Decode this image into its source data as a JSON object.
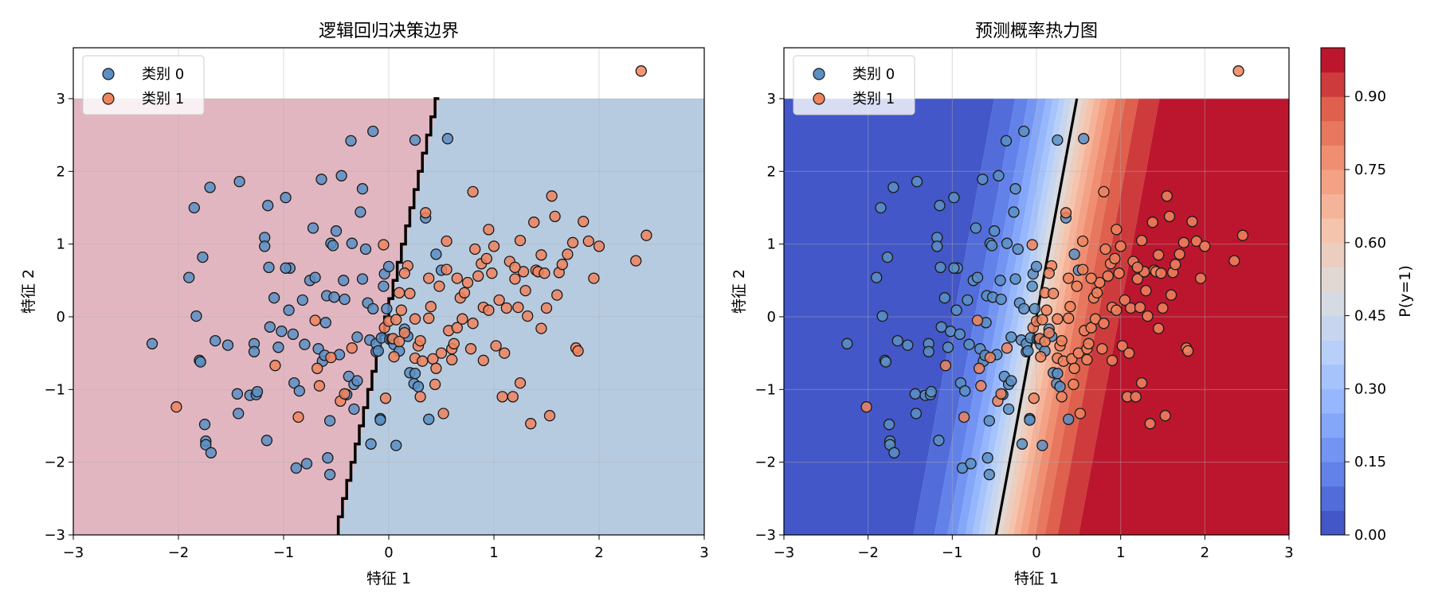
{
  "chart_data": [
    {
      "type": "scatter",
      "title": "逻辑回归决策边界",
      "xlabel": "特征 1",
      "ylabel": "特征 2",
      "xlim": [
        -3,
        3
      ],
      "ylim": [
        -3,
        3.7
      ],
      "xticks": [
        -3,
        -2,
        -1,
        0,
        1,
        2,
        3
      ],
      "yticks": [
        -3,
        -2,
        -1,
        0,
        1,
        2,
        3
      ],
      "tick_labels_x": [
        "−3",
        "−2",
        "−1",
        "0",
        "1",
        "2",
        "3"
      ],
      "tick_labels_y": [
        "−3",
        "−2",
        "−1",
        "0",
        "1",
        "2",
        "3"
      ],
      "grid": true,
      "legend_position": "top-left",
      "background": "predicted class regions (class 0 red, class 1 blue) with stepped black decision boundary",
      "boundary": {
        "x_at_y_min": -0.48,
        "x_at_y_max": 0.48
      },
      "region_colors": {
        "class0": "#e2b6c0",
        "class1": "#b7cbe0"
      },
      "series": [
        {
          "name": "类别 0",
          "color": "#5b8fc4",
          "points": [
            [
              -2.25,
              -0.37
            ],
            [
              -1.9,
              0.54
            ],
            [
              -1.85,
              1.5
            ],
            [
              -1.83,
              0.01
            ],
            [
              -1.8,
              -0.6
            ],
            [
              -1.79,
              -0.62
            ],
            [
              -1.77,
              0.82
            ],
            [
              -1.75,
              -1.48
            ],
            [
              -1.74,
              -1.71
            ],
            [
              -1.74,
              -1.76
            ],
            [
              -1.7,
              1.78
            ],
            [
              -1.69,
              -1.87
            ],
            [
              -1.65,
              -0.33
            ],
            [
              -1.53,
              -0.39
            ],
            [
              -1.44,
              -1.06
            ],
            [
              -1.43,
              -1.33
            ],
            [
              -1.42,
              1.86
            ],
            [
              -1.32,
              -1.08
            ],
            [
              -1.28,
              -0.37
            ],
            [
              -1.28,
              -0.48
            ],
            [
              -1.26,
              -1.07
            ],
            [
              -1.25,
              -1.03
            ],
            [
              -1.18,
              1.09
            ],
            [
              -1.18,
              0.97
            ],
            [
              -1.16,
              -1.7
            ],
            [
              -1.15,
              1.53
            ],
            [
              -1.14,
              0.68
            ],
            [
              -1.13,
              -0.14
            ],
            [
              -1.09,
              0.26
            ],
            [
              -1.05,
              -0.42
            ],
            [
              -1.02,
              -0.2
            ],
            [
              -0.98,
              1.64
            ],
            [
              -0.95,
              0.09
            ],
            [
              -0.94,
              0.67
            ],
            [
              -0.91,
              -0.24
            ],
            [
              -0.9,
              -0.91
            ],
            [
              -0.88,
              -2.08
            ],
            [
              -0.85,
              -1.02
            ],
            [
              -0.82,
              0.23
            ],
            [
              -0.8,
              -0.38
            ],
            [
              -0.78,
              -2.02
            ],
            [
              -0.75,
              0.5
            ],
            [
              -0.72,
              1.22
            ],
            [
              -0.7,
              0.54
            ],
            [
              -0.67,
              -0.44
            ],
            [
              -0.64,
              1.89
            ],
            [
              -0.63,
              -0.61
            ],
            [
              -0.61,
              -0.53
            ],
            [
              -0.59,
              0.29
            ],
            [
              -0.58,
              -1.94
            ],
            [
              -0.56,
              -1.43
            ],
            [
              -0.56,
              -2.17
            ],
            [
              -0.55,
              1.01
            ],
            [
              -0.53,
              0.98
            ],
            [
              -0.52,
              0.27
            ],
            [
              -0.5,
              1.18
            ],
            [
              -0.47,
              -0.52
            ],
            [
              -0.45,
              1.94
            ],
            [
              -0.43,
              0.5
            ],
            [
              -0.42,
              0.24
            ],
            [
              -0.4,
              -1.07
            ],
            [
              -0.38,
              -0.82
            ],
            [
              -0.36,
              2.42
            ],
            [
              -0.35,
              1.01
            ],
            [
              -0.33,
              -0.93
            ],
            [
              -0.33,
              -1.27
            ],
            [
              -0.3,
              -0.88
            ],
            [
              -0.3,
              -0.28
            ],
            [
              -0.27,
              1.44
            ],
            [
              -0.25,
              1.76
            ],
            [
              -0.25,
              0.52
            ],
            [
              -0.22,
              0.93
            ],
            [
              -0.2,
              0.19
            ],
            [
              -0.18,
              -0.32
            ],
            [
              -0.15,
              0.11
            ],
            [
              -0.15,
              2.55
            ],
            [
              -0.12,
              -0.48
            ],
            [
              -0.12,
              -0.37
            ],
            [
              -0.1,
              -0.47
            ],
            [
              -0.08,
              -1.4
            ],
            [
              -0.07,
              -0.29
            ],
            [
              -0.05,
              0.42
            ],
            [
              -0.04,
              0.59
            ],
            [
              -0.02,
              0.11
            ],
            [
              0.0,
              0.69
            ],
            [
              0.01,
              -0.31
            ],
            [
              0.03,
              -0.31
            ],
            [
              0.05,
              -0.38
            ],
            [
              0.07,
              -1.77
            ],
            [
              0.1,
              -0.47
            ],
            [
              0.15,
              -0.17
            ],
            [
              0.18,
              -0.27
            ],
            [
              0.2,
              -0.77
            ],
            [
              0.24,
              -0.92
            ],
            [
              0.25,
              -0.78
            ],
            [
              0.28,
              -0.96
            ],
            [
              0.35,
              1.36
            ],
            [
              0.38,
              -1.41
            ],
            [
              0.45,
              0.86
            ],
            [
              0.5,
              0.64
            ],
            [
              0.56,
              2.45
            ],
            [
              -0.17,
              -1.75
            ],
            [
              -0.08,
              -1.42
            ],
            [
              0.25,
              2.43
            ],
            [
              -0.6,
              -0.08
            ],
            [
              -0.98,
              0.67
            ]
          ]
        },
        {
          "name": "类别 1",
          "color": "#f0845e",
          "points": [
            [
              -2.02,
              -1.24
            ],
            [
              -1.08,
              -0.67
            ],
            [
              -0.86,
              -1.38
            ],
            [
              -0.7,
              -0.05
            ],
            [
              -0.68,
              -0.71
            ],
            [
              -0.66,
              -0.95
            ],
            [
              -0.55,
              -0.56
            ],
            [
              -0.46,
              -1.16
            ],
            [
              -0.42,
              -1.06
            ],
            [
              -0.35,
              -0.43
            ],
            [
              -0.05,
              0.99
            ],
            [
              -0.04,
              -0.15
            ],
            [
              0.0,
              -0.06
            ],
            [
              -0.03,
              -1.12
            ],
            [
              0.04,
              -0.3
            ],
            [
              0.07,
              -0.04
            ],
            [
              0.1,
              -0.34
            ],
            [
              0.1,
              0.33
            ],
            [
              0.12,
              0.09
            ],
            [
              0.15,
              -0.22
            ],
            [
              0.18,
              0.7
            ],
            [
              0.2,
              0.32
            ],
            [
              0.25,
              -0.57
            ],
            [
              0.28,
              -0.4
            ],
            [
              0.3,
              -0.33
            ],
            [
              0.32,
              -0.61
            ],
            [
              0.35,
              1.43
            ],
            [
              0.38,
              0.53
            ],
            [
              0.38,
              -0.02
            ],
            [
              0.4,
              0.14
            ],
            [
              0.42,
              -0.58
            ],
            [
              0.44,
              -0.93
            ],
            [
              0.45,
              -0.71
            ],
            [
              0.48,
              0.42
            ],
            [
              0.5,
              -0.5
            ],
            [
              0.52,
              -1.33
            ],
            [
              0.55,
              0.65
            ],
            [
              0.57,
              -0.19
            ],
            [
              0.6,
              -0.44
            ],
            [
              0.6,
              -0.59
            ],
            [
              0.62,
              -0.37
            ],
            [
              0.65,
              -0.15
            ],
            [
              0.68,
              0.26
            ],
            [
              0.7,
              -0.03
            ],
            [
              0.72,
              0.33
            ],
            [
              0.75,
              0.47
            ],
            [
              0.78,
              -0.44
            ],
            [
              0.8,
              -0.09
            ],
            [
              0.82,
              0.93
            ],
            [
              0.85,
              0.56
            ],
            [
              0.88,
              0.73
            ],
            [
              0.9,
              0.13
            ],
            [
              0.93,
              0.8
            ],
            [
              0.95,
              0.09
            ],
            [
              0.98,
              0.6
            ],
            [
              1.0,
              0.97
            ],
            [
              1.02,
              -0.4
            ],
            [
              1.05,
              0.23
            ],
            [
              1.08,
              -1.1
            ],
            [
              1.12,
              0.12
            ],
            [
              1.15,
              0.76
            ],
            [
              1.18,
              -1.1
            ],
            [
              1.2,
              0.52
            ],
            [
              1.23,
              0.13
            ],
            [
              1.25,
              -0.91
            ],
            [
              1.28,
              0.62
            ],
            [
              1.3,
              0.36
            ],
            [
              1.32,
              0.01
            ],
            [
              1.35,
              -1.47
            ],
            [
              1.38,
              1.3
            ],
            [
              1.4,
              0.64
            ],
            [
              1.42,
              0.62
            ],
            [
              1.45,
              -0.16
            ],
            [
              1.48,
              0.6
            ],
            [
              1.5,
              0.12
            ],
            [
              1.53,
              -1.36
            ],
            [
              1.55,
              1.66
            ],
            [
              1.58,
              1.38
            ],
            [
              1.6,
              0.3
            ],
            [
              1.62,
              0.61
            ],
            [
              1.65,
              0.72
            ],
            [
              1.7,
              0.86
            ],
            [
              1.75,
              1.02
            ],
            [
              1.78,
              -0.43
            ],
            [
              1.8,
              -0.47
            ],
            [
              1.85,
              1.31
            ],
            [
              1.9,
              1.04
            ],
            [
              1.95,
              0.53
            ],
            [
              2.0,
              0.97
            ],
            [
              2.35,
              0.77
            ],
            [
              2.4,
              3.38
            ],
            [
              2.45,
              1.12
            ],
            [
              0.25,
              -0.03
            ],
            [
              0.05,
              -0.55
            ],
            [
              0.15,
              0.6
            ],
            [
              0.55,
              1.04
            ],
            [
              0.95,
              1.2
            ],
            [
              1.25,
              1.05
            ],
            [
              0.65,
              0.53
            ],
            [
              1.1,
              -0.5
            ],
            [
              0.3,
              -1.1
            ],
            [
              0.8,
              1.72
            ],
            [
              1.45,
              0.85
            ],
            [
              1.2,
              0.68
            ],
            [
              0.9,
              -0.6
            ]
          ]
        }
      ]
    },
    {
      "type": "heatmap",
      "title": "预测概率热力图",
      "xlabel": "特征 1",
      "ylabel": "特征 2",
      "xlim": [
        -3,
        3
      ],
      "ylim": [
        -3,
        3.7
      ],
      "xticks": [
        -3,
        -2,
        -1,
        0,
        1,
        2,
        3
      ],
      "yticks": [
        -3,
        -2,
        -1,
        0,
        1,
        2,
        3
      ],
      "tick_labels_x": [
        "−3",
        "−2",
        "−1",
        "0",
        "1",
        "2",
        "3"
      ],
      "tick_labels_y": [
        "−3",
        "−2",
        "−1",
        "0",
        "1",
        "2",
        "3"
      ],
      "grid": true,
      "legend_position": "top-left",
      "colormap": "coolwarm",
      "contour_levels": 20,
      "decision_line": {
        "x_at_y_min": -0.48,
        "x_at_y_max": 0.48
      },
      "colorbar": {
        "label": "P(y=1)",
        "range": [
          0,
          1
        ],
        "ticks": [
          0.0,
          0.15,
          0.3,
          0.45,
          0.6,
          0.75,
          0.9
        ],
        "tick_labels": [
          "0.00",
          "0.15",
          "0.30",
          "0.45",
          "0.60",
          "0.75",
          "0.90"
        ]
      },
      "series_ref": "same points as chart 1"
    }
  ],
  "legend": {
    "class0_label": "类别 0",
    "class1_label": "类别 1"
  }
}
